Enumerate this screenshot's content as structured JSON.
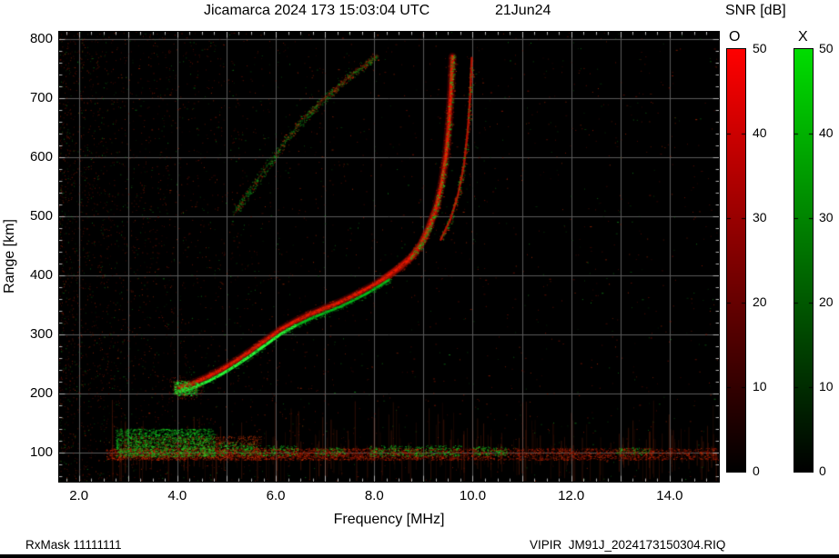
{
  "header": {
    "title": "Jicamarca 2024 173 15:03:04 UTC",
    "date": "21Jun24",
    "snr_label": "SNR [dB]"
  },
  "footer": {
    "rx_mask": "RxMask 11111111",
    "file": "VIPIR  JM91J_2024173150304.RIQ"
  },
  "chart_data": {
    "type": "heatmap",
    "title": "Jicamarca 2024 173 15:03:04 UTC",
    "date_label": "21Jun24",
    "xlabel": "Frequency [MHz]",
    "ylabel": "Range [km]",
    "colorbar_title": "SNR [dB]",
    "xlim": [
      1.6,
      15.0
    ],
    "ylim": [
      50,
      812
    ],
    "x_tick_values": [
      2,
      4,
      6,
      8,
      10,
      12,
      14
    ],
    "x_tick_labels": [
      "2.0",
      "4.0",
      "6.0",
      "8.0",
      "10.0",
      "12.0",
      "14.0"
    ],
    "x_grid": [
      2,
      3,
      4,
      5,
      6,
      7,
      8,
      9,
      10,
      11,
      12,
      13,
      14
    ],
    "y_tick_values": [
      100,
      200,
      300,
      400,
      500,
      600,
      700,
      800
    ],
    "y_tick_labels": [
      "100",
      "200",
      "300",
      "400",
      "500",
      "600",
      "700",
      "800"
    ],
    "grid": true,
    "grid_color": "#5a5a5a",
    "background": "#000000",
    "legend_position": "right",
    "colorbars": [
      {
        "label": "O",
        "min": 0,
        "max": 50,
        "ticks": [
          0,
          10,
          20,
          30,
          40,
          50
        ],
        "color_max": "#ff0000",
        "color_min": "#000000"
      },
      {
        "label": "X",
        "min": 0,
        "max": 50,
        "ticks": [
          0,
          10,
          20,
          30,
          40,
          50
        ],
        "color_max": "#00dd00",
        "color_min": "#000000"
      }
    ],
    "series": [
      {
        "name": "F-layer O-mode trace",
        "mode": "O",
        "color": "#ef1600",
        "speckle": 1300,
        "points": [
          [
            4.05,
            210
          ],
          [
            4.3,
            216
          ],
          [
            4.6,
            227
          ],
          [
            4.9,
            240
          ],
          [
            5.2,
            255
          ],
          [
            5.5,
            272
          ],
          [
            5.8,
            290
          ],
          [
            6.1,
            308
          ],
          [
            6.4,
            322
          ],
          [
            6.7,
            334
          ],
          [
            7.0,
            344
          ],
          [
            7.3,
            354
          ],
          [
            7.6,
            366
          ],
          [
            7.9,
            379
          ],
          [
            8.2,
            394
          ],
          [
            8.5,
            412
          ],
          [
            8.75,
            430
          ],
          [
            8.95,
            452
          ],
          [
            9.1,
            478
          ],
          [
            9.25,
            512
          ],
          [
            9.37,
            555
          ],
          [
            9.46,
            605
          ],
          [
            9.52,
            660
          ],
          [
            9.56,
            715
          ],
          [
            9.59,
            770
          ]
        ]
      },
      {
        "name": "F-layer X-mode trace",
        "mode": "X",
        "color": "#00d21e",
        "speckle": 520,
        "points": [
          [
            3.98,
            202
          ],
          [
            4.3,
            208
          ],
          [
            4.6,
            219
          ],
          [
            4.9,
            232
          ],
          [
            5.2,
            247
          ],
          [
            5.5,
            264
          ],
          [
            5.8,
            282
          ],
          [
            6.1,
            300
          ],
          [
            6.4,
            314
          ],
          [
            6.7,
            326
          ],
          [
            7.0,
            336
          ],
          [
            7.3,
            346
          ],
          [
            7.6,
            358
          ],
          [
            7.9,
            371
          ],
          [
            8.1,
            381
          ],
          [
            8.3,
            392
          ]
        ]
      },
      {
        "name": "X-mode critical branch",
        "mode": "X",
        "color": "#c01200",
        "speckle": 300,
        "points": [
          [
            9.35,
            460
          ],
          [
            9.55,
            495
          ],
          [
            9.7,
            535
          ],
          [
            9.82,
            585
          ],
          [
            9.9,
            645
          ],
          [
            9.95,
            705
          ],
          [
            9.98,
            768
          ]
        ]
      },
      {
        "name": "Second-hop echo",
        "mode": "multipath",
        "color": "#12b41e",
        "speckle": 780,
        "points": [
          [
            5.15,
            505
          ],
          [
            5.45,
            540
          ],
          [
            5.8,
            582
          ],
          [
            6.2,
            628
          ],
          [
            6.6,
            668
          ],
          [
            7.0,
            700
          ],
          [
            7.4,
            730
          ],
          [
            7.75,
            752
          ],
          [
            8.05,
            772
          ]
        ]
      }
    ],
    "critical_frequencies": {
      "foF2_MHz": 9.6,
      "fxF2_MHz": 10.0
    },
    "e_region": {
      "band": [
        2.55,
        15.0
      ],
      "range_km": [
        87,
        107
      ],
      "core_dots": 5200,
      "bright_patch": [
        2.9,
        5.7,
        90,
        128,
        1100
      ],
      "green_clusters": [
        [
          2.75,
          4.75,
          92,
          140,
          1500
        ],
        [
          4.6,
          5.6,
          94,
          118,
          160
        ],
        [
          5.3,
          6.45,
          94,
          112,
          150
        ],
        [
          6.8,
          7.4,
          94,
          108,
          70
        ],
        [
          7.9,
          9.75,
          93,
          112,
          300
        ],
        [
          10.0,
          10.7,
          94,
          110,
          110
        ],
        [
          12.9,
          13.6,
          95,
          108,
          60
        ]
      ]
    },
    "start_blob": {
      "f": [
        3.92,
        4.42
      ],
      "r": [
        196,
        221
      ],
      "green": 260,
      "red": 170
    },
    "noise": {
      "seed": 1337,
      "uniform_dots": 1700,
      "left_dots": 2600,
      "streaks": 240,
      "red_palette": [
        "#6e0f00",
        "#8c1400",
        "#a51a02",
        "#c23005"
      ],
      "green_palette": [
        "#0a5a10",
        "#0e7d16",
        "#16a81e"
      ]
    },
    "steep_green_speckle": 330
  }
}
